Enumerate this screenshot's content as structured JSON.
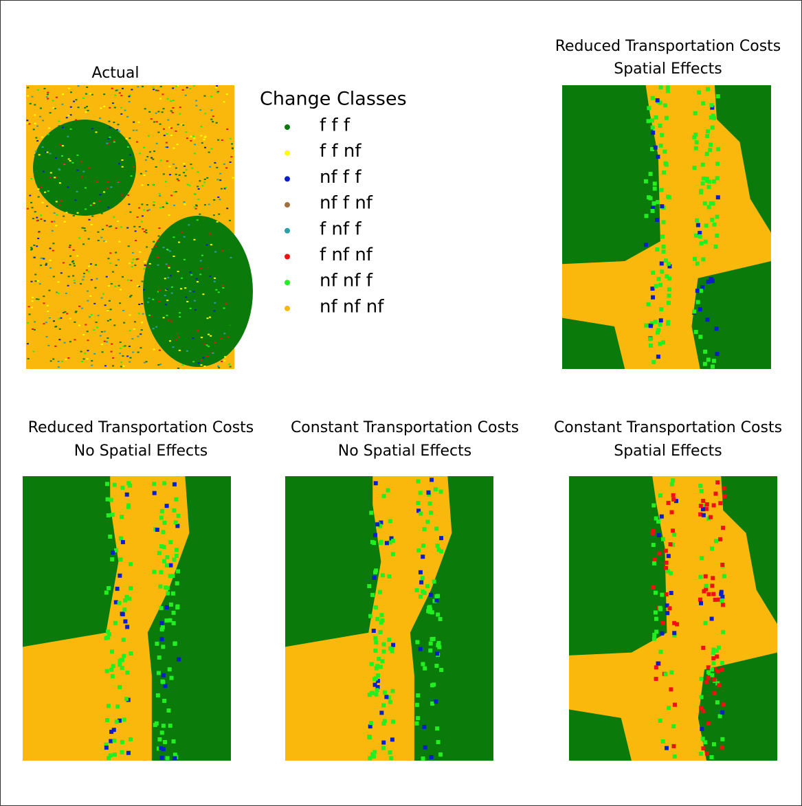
{
  "panels": [
    {
      "title": [
        "Actual"
      ]
    },
    {
      "title": [
        "Reduced Transportation Costs",
        "Spatial Effects"
      ]
    },
    {
      "title": [
        "Reduced Transportation Costs",
        "No Spatial Effects"
      ]
    },
    {
      "title": [
        "Constant Transportation Costs",
        "No Spatial Effects"
      ]
    },
    {
      "title": [
        "Constant Transportation Costs",
        "Spatial Effects"
      ]
    }
  ],
  "legend": {
    "title": "Change Classes",
    "items": [
      {
        "label": "f f f",
        "color": "#0a7a0a"
      },
      {
        "label": "f f nf",
        "color": "#ffff00"
      },
      {
        "label": "nf f f",
        "color": "#0a1fc8"
      },
      {
        "label": "nf f nf",
        "color": "#a0703c"
      },
      {
        "label": "f nf f",
        "color": "#2aa0a8"
      },
      {
        "label": "f nf nf",
        "color": "#ee1111"
      },
      {
        "label": "nf nf f",
        "color": "#22ee22"
      },
      {
        "label": "nf nf nf",
        "color": "#fbb80c"
      }
    ]
  }
}
